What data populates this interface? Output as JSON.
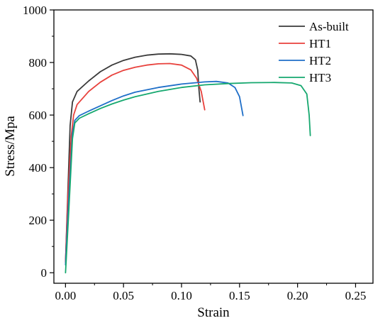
{
  "chart_data": {
    "type": "line",
    "title": "",
    "xlabel": "Strain",
    "ylabel": "Stress/Mpa",
    "xlim": [
      -0.01,
      0.265
    ],
    "ylim": [
      -40,
      1000
    ],
    "x_ticks": [
      0.0,
      0.05,
      0.1,
      0.15,
      0.2,
      0.25
    ],
    "x_tick_labels": [
      "0.00",
      "0.05",
      "0.10",
      "0.15",
      "0.20",
      "0.25"
    ],
    "y_ticks": [
      0,
      200,
      400,
      600,
      800,
      1000
    ],
    "y_tick_labels": [
      "0",
      "200",
      "400",
      "600",
      "800",
      "1000"
    ],
    "grid": false,
    "legend_position": "top-right",
    "series": [
      {
        "name": "As-built",
        "color": "#3a3a3a",
        "points": [
          [
            0.0,
            40
          ],
          [
            0.002,
            300
          ],
          [
            0.004,
            560
          ],
          [
            0.006,
            650
          ],
          [
            0.01,
            690
          ],
          [
            0.02,
            730
          ],
          [
            0.03,
            765
          ],
          [
            0.04,
            790
          ],
          [
            0.05,
            808
          ],
          [
            0.06,
            820
          ],
          [
            0.07,
            828
          ],
          [
            0.08,
            832
          ],
          [
            0.09,
            833
          ],
          [
            0.1,
            831
          ],
          [
            0.108,
            825
          ],
          [
            0.112,
            810
          ],
          [
            0.114,
            770
          ],
          [
            0.115,
            700
          ],
          [
            0.116,
            650
          ]
        ]
      },
      {
        "name": "HT1",
        "color": "#e8413c",
        "points": [
          [
            0.0,
            40
          ],
          [
            0.002,
            280
          ],
          [
            0.005,
            520
          ],
          [
            0.007,
            600
          ],
          [
            0.01,
            640
          ],
          [
            0.02,
            690
          ],
          [
            0.03,
            725
          ],
          [
            0.04,
            752
          ],
          [
            0.05,
            770
          ],
          [
            0.06,
            782
          ],
          [
            0.07,
            790
          ],
          [
            0.08,
            795
          ],
          [
            0.09,
            796
          ],
          [
            0.1,
            790
          ],
          [
            0.108,
            772
          ],
          [
            0.113,
            740
          ],
          [
            0.117,
            690
          ],
          [
            0.12,
            620
          ]
        ]
      },
      {
        "name": "HT2",
        "color": "#1f6fc8",
        "points": [
          [
            0.0,
            30
          ],
          [
            0.003,
            300
          ],
          [
            0.006,
            530
          ],
          [
            0.008,
            580
          ],
          [
            0.012,
            598
          ],
          [
            0.02,
            615
          ],
          [
            0.03,
            635
          ],
          [
            0.04,
            655
          ],
          [
            0.05,
            673
          ],
          [
            0.06,
            687
          ],
          [
            0.08,
            705
          ],
          [
            0.1,
            718
          ],
          [
            0.12,
            726
          ],
          [
            0.13,
            728
          ],
          [
            0.14,
            722
          ],
          [
            0.146,
            705
          ],
          [
            0.15,
            670
          ],
          [
            0.153,
            598
          ]
        ]
      },
      {
        "name": "HT3",
        "color": "#16a86f",
        "points": [
          [
            0.0,
            0
          ],
          [
            0.003,
            250
          ],
          [
            0.006,
            510
          ],
          [
            0.008,
            570
          ],
          [
            0.012,
            588
          ],
          [
            0.02,
            605
          ],
          [
            0.03,
            625
          ],
          [
            0.04,
            642
          ],
          [
            0.05,
            657
          ],
          [
            0.06,
            670
          ],
          [
            0.08,
            690
          ],
          [
            0.1,
            705
          ],
          [
            0.12,
            715
          ],
          [
            0.14,
            720
          ],
          [
            0.16,
            723
          ],
          [
            0.18,
            724
          ],
          [
            0.195,
            722
          ],
          [
            0.203,
            712
          ],
          [
            0.208,
            680
          ],
          [
            0.21,
            600
          ],
          [
            0.211,
            522
          ]
        ]
      }
    ]
  }
}
